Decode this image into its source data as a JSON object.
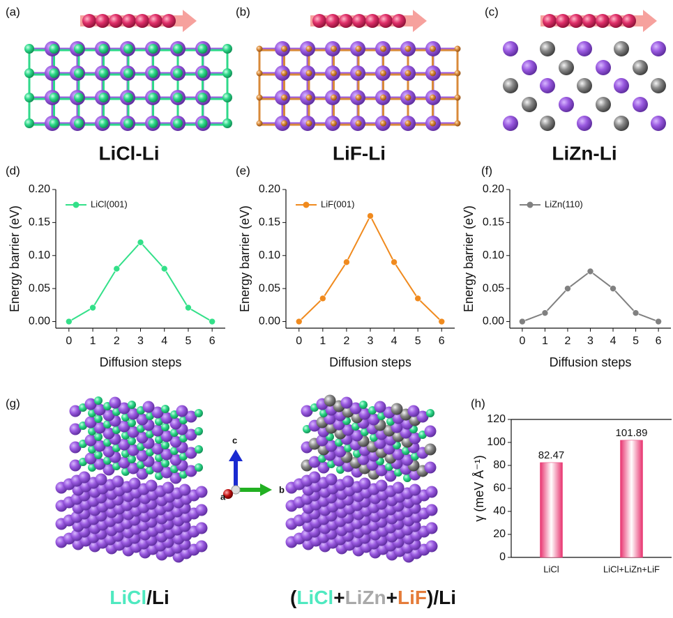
{
  "panel_labels": [
    "(a)",
    "(b)",
    "(c)",
    "(d)",
    "(e)",
    "(f)",
    "(g)",
    "(h)"
  ],
  "structure_captions": [
    "LiCl-Li",
    "LiF-Li",
    "LiZn-Li"
  ],
  "model_captions": {
    "left": [
      "LiCl",
      "/Li"
    ],
    "right": [
      "(",
      "LiCl",
      "+",
      "LiZn",
      "+",
      "LiF",
      ")/Li"
    ]
  },
  "axes_labels": [
    "a",
    "b",
    "c"
  ],
  "chart_data": [
    {
      "type": "line",
      "xlabel": "Diffusion steps",
      "ylabel": "Energy barrier (eV)",
      "x": [
        0,
        1,
        2,
        3,
        4,
        5,
        6
      ],
      "series": [
        {
          "name": "LiCl(001)",
          "color": "#33e089",
          "values": [
            0,
            0.021,
            0.08,
            0.12,
            0.08,
            0.021,
            0
          ]
        }
      ],
      "xlim": [
        -0.55,
        6.55
      ],
      "ylim": [
        -0.01,
        0.2
      ],
      "xticks": [
        0,
        1,
        2,
        3,
        4,
        5,
        6
      ],
      "yticks": [
        {
          "value": 0,
          "label": "0.00"
        },
        {
          "value": 0.05,
          "label": "0.05"
        },
        {
          "value": 0.1,
          "label": "0.10"
        },
        {
          "value": 0.15,
          "label": "0.15"
        },
        {
          "value": 0.2,
          "label": "0.20"
        }
      ],
      "legend": "upper left"
    },
    {
      "type": "line",
      "xlabel": "Diffusion steps",
      "ylabel": "Energy barrier (eV)",
      "x": [
        0,
        1,
        2,
        3,
        4,
        5,
        6
      ],
      "series": [
        {
          "name": "LiF(001)",
          "color": "#f08a1e",
          "values": [
            0,
            0.035,
            0.09,
            0.16,
            0.09,
            0.035,
            0
          ]
        }
      ],
      "xlim": [
        -0.55,
        6.55
      ],
      "ylim": [
        -0.01,
        0.2
      ],
      "xticks": [
        0,
        1,
        2,
        3,
        4,
        5,
        6
      ],
      "yticks": [
        {
          "value": 0,
          "label": "0.00"
        },
        {
          "value": 0.05,
          "label": "0.05"
        },
        {
          "value": 0.1,
          "label": "0.10"
        },
        {
          "value": 0.15,
          "label": "0.15"
        },
        {
          "value": 0.2,
          "label": "0.20"
        }
      ],
      "legend": "upper left"
    },
    {
      "type": "line",
      "xlabel": "Diffusion steps",
      "ylabel": "Energy barrier (eV)",
      "x": [
        0,
        1,
        2,
        3,
        4,
        5,
        6
      ],
      "series": [
        {
          "name": "LiZn(110)",
          "color": "#808080",
          "values": [
            0,
            0.013,
            0.05,
            0.076,
            0.05,
            0.013,
            0
          ]
        }
      ],
      "xlim": [
        -0.55,
        6.55
      ],
      "ylim": [
        -0.01,
        0.2
      ],
      "xticks": [
        0,
        1,
        2,
        3,
        4,
        5,
        6
      ],
      "yticks": [
        {
          "value": 0,
          "label": "0.00"
        },
        {
          "value": 0.05,
          "label": "0.05"
        },
        {
          "value": 0.1,
          "label": "0.10"
        },
        {
          "value": 0.15,
          "label": "0.15"
        },
        {
          "value": 0.2,
          "label": "0.20"
        }
      ],
      "legend": "upper left"
    },
    {
      "type": "bar",
      "ylabel": "γ (meV Å⁻¹)",
      "categories": [
        "LiCl",
        "LiCl+LiZn+LiF"
      ],
      "values": [
        82.47,
        101.89
      ],
      "color": "#e8336f",
      "ylim": [
        0,
        120
      ],
      "yticks": [
        0,
        20,
        40,
        60,
        80,
        100,
        120
      ]
    }
  ]
}
